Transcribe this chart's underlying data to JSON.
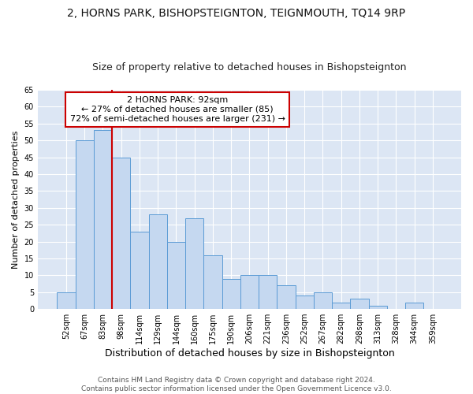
{
  "title": "2, HORNS PARK, BISHOPSTEIGNTON, TEIGNMOUTH, TQ14 9RP",
  "subtitle": "Size of property relative to detached houses in Bishopsteignton",
  "xlabel": "Distribution of detached houses by size in Bishopsteignton",
  "ylabel": "Number of detached properties",
  "categories": [
    "52sqm",
    "67sqm",
    "83sqm",
    "98sqm",
    "114sqm",
    "129sqm",
    "144sqm",
    "160sqm",
    "175sqm",
    "190sqm",
    "206sqm",
    "221sqm",
    "236sqm",
    "252sqm",
    "267sqm",
    "282sqm",
    "298sqm",
    "313sqm",
    "328sqm",
    "344sqm",
    "359sqm"
  ],
  "values": [
    5,
    50,
    53,
    45,
    23,
    28,
    20,
    27,
    16,
    9,
    10,
    10,
    7,
    4,
    5,
    2,
    3,
    1,
    0,
    2,
    0
  ],
  "bar_color": "#c5d8f0",
  "bar_edge_color": "#5b9bd5",
  "vline_color": "#cc0000",
  "vline_x_index": 2.5,
  "annotation_box_text": "2 HORNS PARK: 92sqm\n← 27% of detached houses are smaller (85)\n72% of semi-detached houses are larger (231) →",
  "annotation_box_color": "#cc0000",
  "annotation_box_bg": "#ffffff",
  "ylim": [
    0,
    65
  ],
  "yticks": [
    0,
    5,
    10,
    15,
    20,
    25,
    30,
    35,
    40,
    45,
    50,
    55,
    60,
    65
  ],
  "footnote": "Contains HM Land Registry data © Crown copyright and database right 2024.\nContains public sector information licensed under the Open Government Licence v3.0.",
  "figure_bg": "#ffffff",
  "plot_bg": "#dce6f4",
  "grid_color": "#ffffff",
  "title_fontsize": 10,
  "subtitle_fontsize": 9,
  "tick_fontsize": 7,
  "ylabel_fontsize": 8,
  "xlabel_fontsize": 9,
  "annot_fontsize": 8,
  "footnote_fontsize": 6.5
}
